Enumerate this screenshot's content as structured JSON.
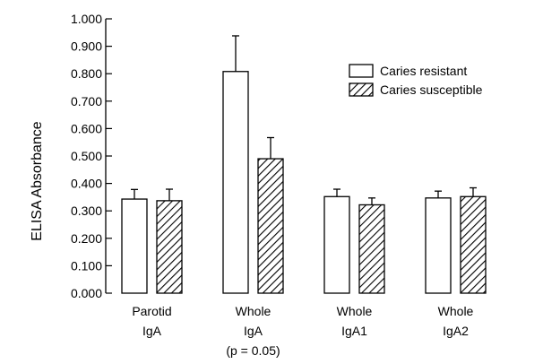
{
  "chart_data": {
    "type": "bar",
    "title": "",
    "xlabel": "",
    "ylabel": "ELISA Absorbance",
    "ylim": [
      0,
      1.0
    ],
    "yticks": [
      "0.000",
      "0.100",
      "0.200",
      "0.300",
      "0.400",
      "0.500",
      "0.600",
      "0.700",
      "0.800",
      "0.900",
      "1.000"
    ],
    "categories": [
      {
        "lines": [
          "Parotid",
          "IgA"
        ]
      },
      {
        "lines": [
          "Whole",
          "IgA",
          "(p = 0.05)"
        ]
      },
      {
        "lines": [
          "Whole",
          "IgA1"
        ]
      },
      {
        "lines": [
          "Whole",
          "IgA2"
        ]
      }
    ],
    "series": [
      {
        "name": "Caries resistant",
        "pattern": "open",
        "values": [
          0.343,
          0.808,
          0.352,
          0.347
        ],
        "errors": [
          0.035,
          0.13,
          0.027,
          0.025
        ]
      },
      {
        "name": "Caries susceptible",
        "pattern": "hatched",
        "values": [
          0.337,
          0.49,
          0.322,
          0.352
        ],
        "errors": [
          0.042,
          0.077,
          0.025,
          0.032
        ]
      }
    ],
    "legend": "top-right",
    "grid": false
  }
}
